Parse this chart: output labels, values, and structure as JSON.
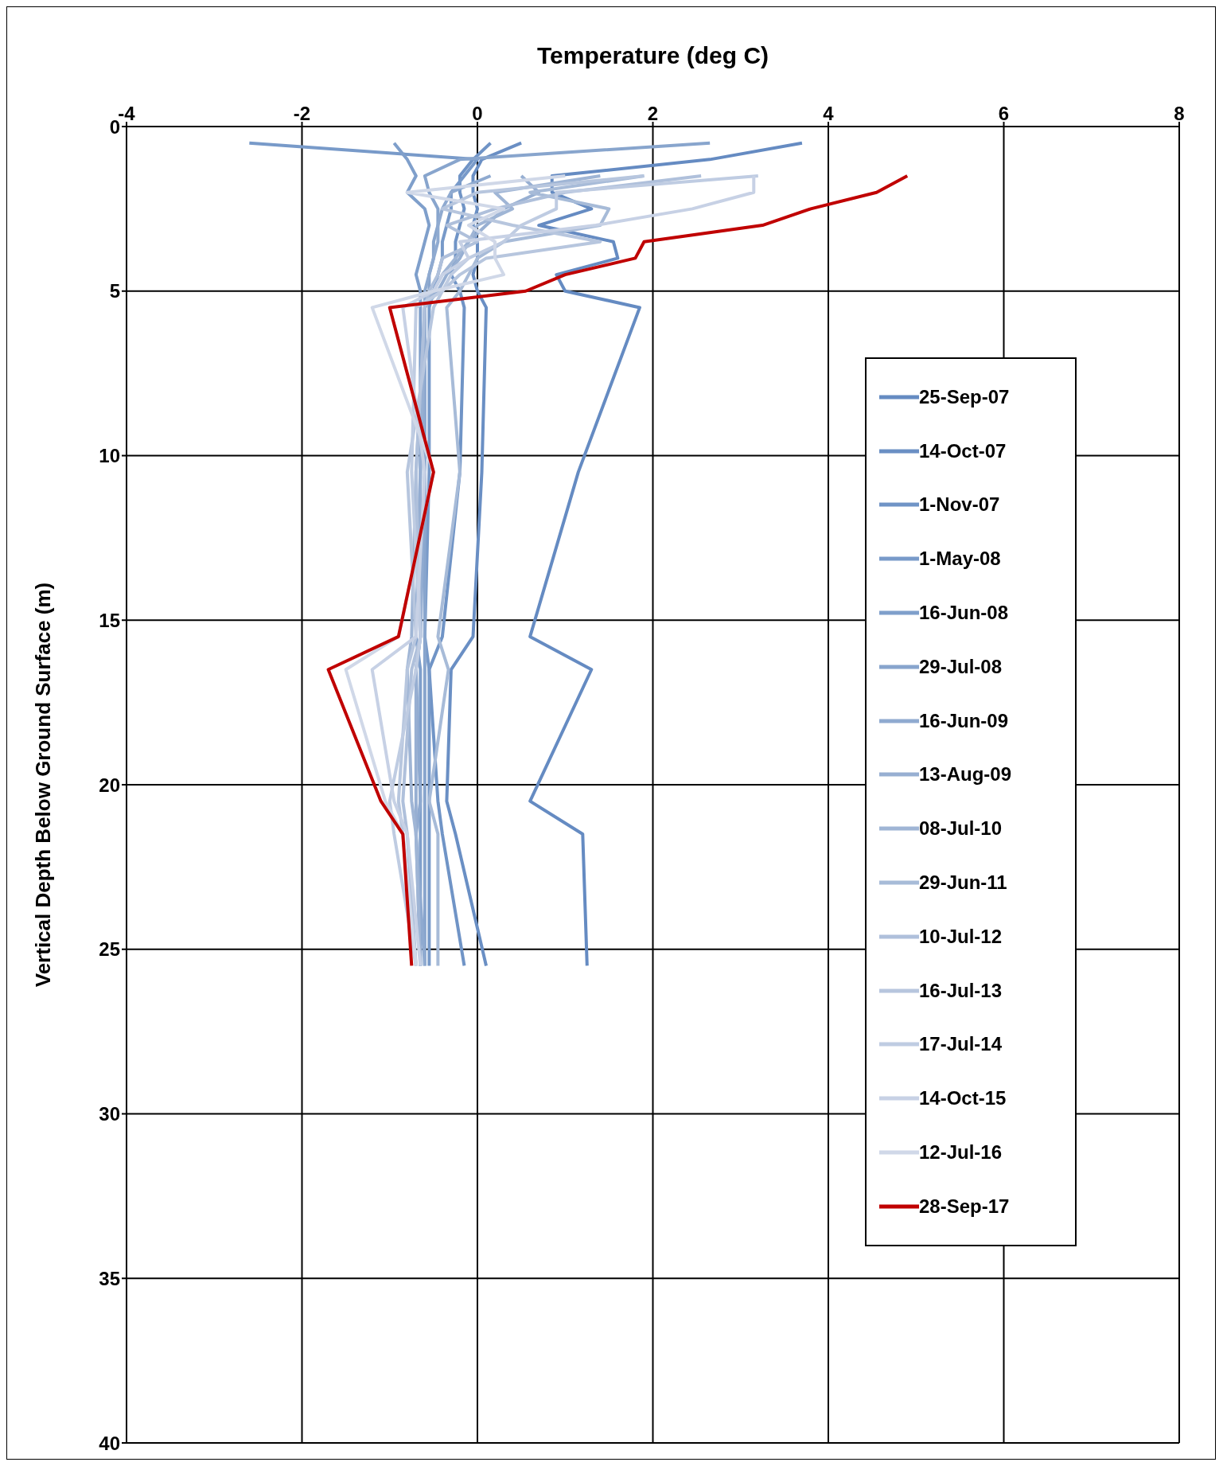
{
  "chart_data": {
    "type": "line",
    "xlabel": "Temperature (deg C)",
    "ylabel": "Vertical Depth Below Ground Surface (m)",
    "xlim": [
      -4,
      8
    ],
    "xticks": [
      -4,
      -2,
      0,
      2,
      4,
      6,
      8
    ],
    "ylim": [
      40,
      0
    ],
    "yticks": [
      0,
      5,
      10,
      15,
      20,
      25,
      30,
      35,
      40
    ],
    "grid": true,
    "legend": "right",
    "line_style": "solid",
    "marker": "none",
    "series": [
      {
        "name": "25-Sep-07",
        "color": "#658bc2",
        "x": [
          3.7,
          2.65,
          0.85,
          0.85,
          1.3,
          0.7,
          1.55,
          1.6,
          0.9,
          1.0,
          1.85,
          1.15,
          0.6,
          1.3,
          0.6,
          1.2,
          1.25
        ],
        "values": [
          0.5,
          1,
          1.5,
          2,
          2.5,
          3,
          3.5,
          4,
          4.5,
          5,
          5.5,
          10.5,
          15.5,
          16.5,
          20.5,
          21.5,
          25.5
        ]
      },
      {
        "name": "14-Oct-07",
        "color": "#6a8fc4",
        "x": [
          0.5,
          0.05,
          -0.05,
          -0.05,
          0.0,
          -0.05,
          0.0,
          0.0,
          -0.05,
          0.0,
          0.1,
          0.05,
          -0.05,
          -0.3,
          -0.35,
          -0.25,
          0.1
        ],
        "values": [
          0.5,
          1,
          1.5,
          2,
          2.5,
          3,
          3.5,
          4,
          4.5,
          5,
          5.5,
          10.5,
          15.5,
          16.5,
          20.5,
          21.5,
          25.5
        ]
      },
      {
        "name": "1-Nov-07",
        "color": "#7094c6",
        "x": [
          0.15,
          -0.05,
          -0.2,
          -0.2,
          -0.15,
          -0.2,
          -0.25,
          -0.25,
          -0.3,
          -0.2,
          -0.15,
          -0.2,
          -0.4,
          -0.55,
          -0.45,
          -0.4,
          -0.15
        ],
        "values": [
          0.5,
          1,
          1.5,
          2,
          2.5,
          3,
          3.5,
          4,
          4.5,
          5,
          5.5,
          10.5,
          15.5,
          16.5,
          20.5,
          21.5,
          25.5
        ]
      },
      {
        "name": "1-May-08",
        "color": "#789ac9",
        "x": [
          -2.6,
          0.0,
          -0.15,
          -0.3,
          -0.3,
          -0.35,
          -0.4,
          -0.4,
          -0.45,
          -0.5,
          -0.55,
          -0.55,
          -0.6,
          -0.55,
          -0.55,
          -0.55,
          -0.55
        ],
        "values": [
          0.5,
          1,
          1.5,
          2,
          2.5,
          3,
          3.5,
          4,
          4.5,
          5,
          5.5,
          10.5,
          15.5,
          16.5,
          20.5,
          21.5,
          25.5
        ]
      },
      {
        "name": "16-Jun-08",
        "color": "#7f9fcb",
        "x": [
          -0.95,
          -0.8,
          -0.7,
          -0.8,
          -0.6,
          -0.55,
          -0.6,
          -0.65,
          -0.7,
          -0.65,
          -0.65,
          -0.65,
          -0.7,
          -0.65,
          -0.65,
          -0.65,
          -0.65
        ],
        "values": [
          0.5,
          1,
          1.5,
          2,
          2.5,
          3,
          3.5,
          4,
          4.5,
          5,
          5.5,
          10.5,
          15.5,
          16.5,
          20.5,
          21.5,
          25.5
        ]
      },
      {
        "name": "29-Jul-08",
        "color": "#88a5cd",
        "x": [
          2.65,
          -0.2,
          -0.6,
          -0.55,
          -0.45,
          -0.45,
          -0.5,
          -0.5,
          -0.55,
          -0.55,
          -0.6,
          -0.6,
          -0.6,
          -0.6,
          -0.6,
          -0.6,
          -0.6
        ],
        "values": [
          0.5,
          1,
          1.5,
          2,
          2.5,
          3,
          3.5,
          4,
          4.5,
          5,
          5.5,
          10.5,
          15.5,
          16.5,
          20.5,
          21.5,
          25.5
        ]
      },
      {
        "name": "16-Jun-09",
        "color": "#8faad0",
        "x": [
          0.15,
          -0.3,
          -0.4,
          -0.45,
          -0.45,
          -0.5,
          -0.55,
          -0.6,
          -0.6,
          -0.6,
          -0.65,
          -0.7,
          -0.65,
          -0.7,
          -0.6
        ],
        "values": [
          1.5,
          2,
          2.5,
          3,
          3.5,
          4,
          4.5,
          5,
          5.5,
          10.5,
          15.5,
          16.5,
          20.5,
          21.5,
          25.5
        ]
      },
      {
        "name": "13-Aug-09",
        "color": "#97afd2",
        "x": [
          0.5,
          0.7,
          0.3,
          0.1,
          -0.1,
          -0.2,
          -0.35,
          -0.45,
          -0.6,
          -0.65,
          -0.65,
          -0.7,
          -0.7,
          -0.7,
          -0.65
        ],
        "values": [
          1.5,
          2,
          2.5,
          3,
          3.5,
          4,
          4.5,
          5,
          5.5,
          10.5,
          15.5,
          16.5,
          20.5,
          21.5,
          25.5
        ]
      },
      {
        "name": "08-Jul-10",
        "color": "#9fb5d5",
        "x": [
          1.4,
          0.2,
          0.4,
          0.0,
          -0.1,
          -0.25,
          -0.4,
          -0.5,
          -0.6,
          -0.7,
          -0.75,
          -0.8,
          -0.75,
          -0.7,
          -0.65
        ],
        "values": [
          1.5,
          2,
          2.5,
          3,
          3.5,
          4,
          4.5,
          5,
          5.5,
          10.5,
          15.5,
          16.5,
          20.5,
          21.5,
          25.5
        ]
      },
      {
        "name": "29-Jun-11",
        "color": "#a7bbd8",
        "x": [
          1.9,
          0.6,
          1.5,
          1.4,
          0.3,
          0.0,
          -0.1,
          -0.2,
          -0.35,
          -0.2,
          -0.45,
          -0.33,
          -0.55,
          -0.45,
          -0.45
        ],
        "values": [
          1.5,
          2,
          2.5,
          3,
          3.5,
          4,
          4.5,
          5,
          5.5,
          10.5,
          15.5,
          16.5,
          20.5,
          21.5,
          25.5
        ]
      },
      {
        "name": "10-Jul-12",
        "color": "#afc0db",
        "x": [
          2.55,
          1.0,
          0.2,
          -0.35,
          0.0,
          -0.4,
          -0.45,
          -0.55,
          -0.6,
          -0.7,
          -0.65,
          -0.75,
          -0.85,
          -0.8,
          -0.7
        ],
        "values": [
          1.5,
          2,
          2.5,
          3,
          3.5,
          4,
          4.5,
          5,
          5.5,
          10.5,
          15.5,
          16.5,
          20.5,
          21.5,
          25.5
        ]
      },
      {
        "name": "16-Jul-13",
        "color": "#b7c6de",
        "x": [
          1.9,
          0.0,
          -0.4,
          0.4,
          1.4,
          0.1,
          -0.2,
          -0.4,
          -0.5,
          -0.8,
          -0.7,
          -0.8,
          -0.9,
          -0.85,
          -0.7
        ],
        "values": [
          1.5,
          2,
          2.5,
          3,
          3.5,
          4,
          4.5,
          5,
          5.5,
          10.5,
          15.5,
          16.5,
          20.5,
          21.5,
          25.5
        ]
      },
      {
        "name": "17-Jul-14",
        "color": "#bfcce2",
        "x": [
          3.2,
          0.9,
          0.9,
          0.5,
          0.3,
          -0.1,
          -0.3,
          -0.4,
          -0.7,
          -0.75,
          -0.65,
          -0.7,
          -1.0,
          -0.95,
          -0.7
        ],
        "values": [
          1.5,
          2,
          2.5,
          3,
          3.5,
          4,
          4.5,
          5,
          5.5,
          10.5,
          15.5,
          16.5,
          20.5,
          21.5,
          25.5
        ]
      },
      {
        "name": "14-Oct-15",
        "color": "#c7d1e5",
        "x": [
          3.15,
          3.15,
          2.45,
          1.35,
          -0.2,
          -0.1,
          -0.4,
          -0.5,
          -0.85,
          -0.6,
          -0.7,
          -1.2,
          -0.95,
          -0.8,
          -0.65
        ],
        "values": [
          1.5,
          2,
          2.5,
          3,
          3.5,
          4,
          4.5,
          5,
          5.5,
          10.5,
          15.5,
          16.5,
          20.5,
          21.5,
          25.5
        ]
      },
      {
        "name": "12-Jul-16",
        "color": "#d0d8e8",
        "x": [
          1.0,
          -0.8,
          0.3,
          -0.1,
          0.2,
          0.2,
          0.3,
          -0.5,
          -1.2,
          -0.5,
          -0.9,
          -1.5,
          -1.05,
          -0.85,
          -0.7
        ],
        "values": [
          1.5,
          2,
          2.5,
          3,
          3.5,
          4,
          4.5,
          5,
          5.5,
          10.5,
          15.5,
          16.5,
          20.5,
          21.5,
          25.5
        ]
      },
      {
        "name": "28-Sep-17",
        "color": "#c00000",
        "x": [
          4.9,
          4.55,
          3.8,
          3.25,
          1.9,
          1.8,
          1.0,
          0.55,
          -1.0,
          -0.5,
          -0.9,
          -1.7,
          -1.1,
          -0.85,
          -0.75
        ],
        "values": [
          1.5,
          2,
          2.5,
          3,
          3.5,
          4,
          4.5,
          5,
          5.5,
          10.5,
          15.5,
          16.5,
          20.5,
          21.5,
          25.5
        ]
      }
    ]
  }
}
